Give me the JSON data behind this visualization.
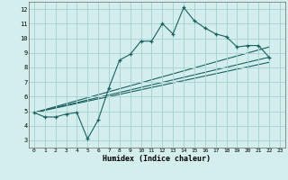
{
  "xlabel": "Humidex (Indice chaleur)",
  "bg_color": "#d4eeee",
  "grid_color": "#aad4d4",
  "line_color": "#1a6060",
  "xlim": [
    -0.5,
    23.5
  ],
  "ylim": [
    2.5,
    12.5
  ],
  "xticks": [
    0,
    1,
    2,
    3,
    4,
    5,
    6,
    7,
    8,
    9,
    10,
    11,
    12,
    13,
    14,
    15,
    16,
    17,
    18,
    19,
    20,
    21,
    22,
    23
  ],
  "yticks": [
    3,
    4,
    5,
    6,
    7,
    8,
    9,
    10,
    11,
    12
  ],
  "line1_x": [
    0,
    1,
    2,
    3,
    4,
    5,
    6,
    7,
    8,
    9,
    10,
    11,
    12,
    13,
    14,
    15,
    16,
    17,
    18,
    19,
    20,
    21,
    22
  ],
  "line1_y": [
    4.9,
    4.6,
    4.6,
    4.8,
    4.9,
    3.1,
    4.4,
    6.6,
    8.5,
    8.9,
    9.8,
    9.8,
    11.0,
    10.3,
    12.1,
    11.2,
    10.7,
    10.3,
    10.1,
    9.4,
    9.5,
    9.5,
    8.7
  ],
  "line2_x": [
    0,
    22
  ],
  "line2_y": [
    4.9,
    8.7
  ],
  "line3_x": [
    0,
    22
  ],
  "line3_y": [
    4.9,
    8.35
  ],
  "line4_x": [
    0,
    22
  ],
  "line4_y": [
    4.9,
    9.4
  ]
}
